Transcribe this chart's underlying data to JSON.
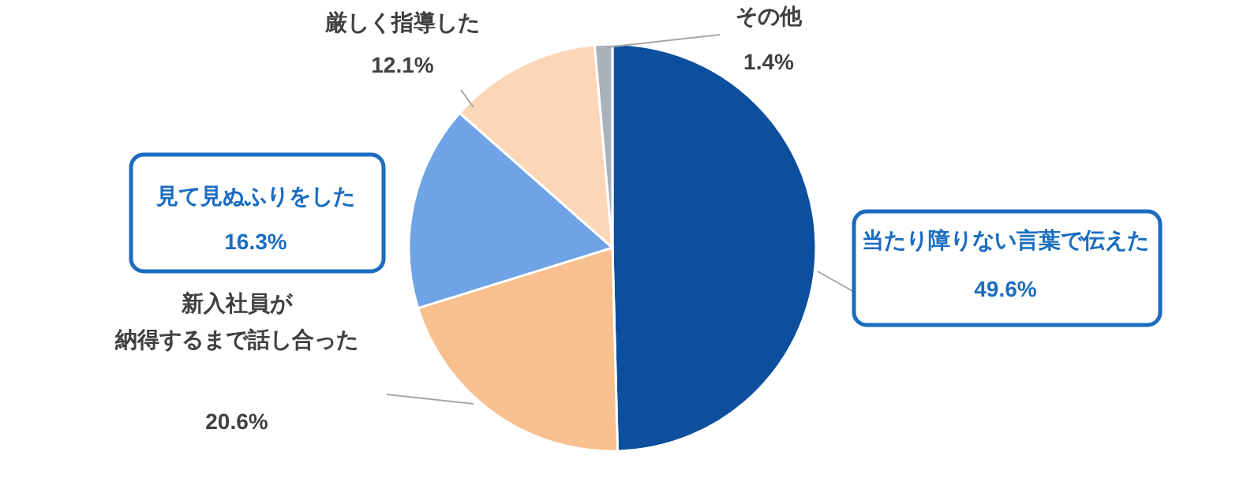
{
  "chart_data": {
    "type": "pie",
    "categories": [
      "当たり障りない言葉で伝えた",
      "新入社員が納得するまで話し合った",
      "見て見ぬふりをした",
      "厳しく指導した",
      "その他"
    ],
    "values": [
      49.6,
      20.6,
      16.3,
      12.1,
      1.4
    ],
    "value_labels": [
      "49.6%",
      "20.6%",
      "16.3%",
      "12.1%",
      "1.4%"
    ],
    "colors": [
      "#0b4f9e",
      "#f8c08f",
      "#6fa3e6",
      "#fbd7b8",
      "#a9b1bb"
    ]
  }
}
